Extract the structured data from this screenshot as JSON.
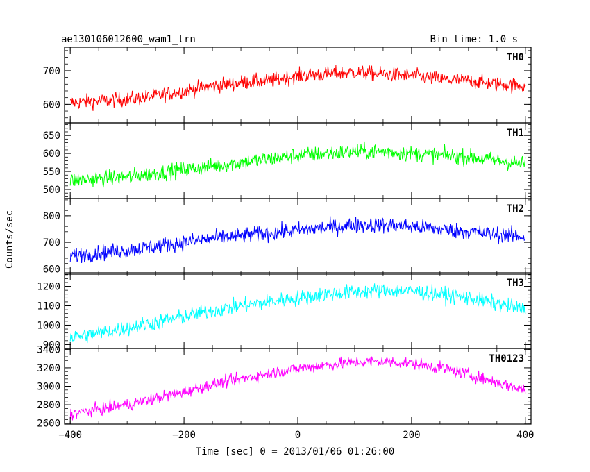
{
  "header": {
    "title": "ae130106012600_wam1_trn",
    "bin_time": "Bin time: 1.0 s"
  },
  "chart_data": [
    {
      "type": "line",
      "name": "TH0",
      "color": "#ff0000",
      "ylim": [
        545,
        770
      ],
      "yticks": [
        600,
        700
      ],
      "anchors": [
        [
          -400,
          605
        ],
        [
          -350,
          610
        ],
        [
          -300,
          615
        ],
        [
          -250,
          625
        ],
        [
          -200,
          640
        ],
        [
          -150,
          655
        ],
        [
          -100,
          665
        ],
        [
          -50,
          670
        ],
        [
          0,
          685
        ],
        [
          50,
          690
        ],
        [
          100,
          695
        ],
        [
          150,
          690
        ],
        [
          200,
          685
        ],
        [
          250,
          675
        ],
        [
          300,
          670
        ],
        [
          350,
          660
        ],
        [
          400,
          655
        ]
      ],
      "noise": 22
    },
    {
      "type": "line",
      "name": "TH1",
      "color": "#00ff00",
      "ylim": [
        475,
        685
      ],
      "yticks": [
        500,
        550,
        600,
        650
      ],
      "anchors": [
        [
          -400,
          525
        ],
        [
          -350,
          530
        ],
        [
          -300,
          535
        ],
        [
          -250,
          545
        ],
        [
          -200,
          555
        ],
        [
          -150,
          565
        ],
        [
          -100,
          575
        ],
        [
          -50,
          585
        ],
        [
          0,
          595
        ],
        [
          50,
          600
        ],
        [
          100,
          605
        ],
        [
          150,
          605
        ],
        [
          200,
          600
        ],
        [
          250,
          595
        ],
        [
          300,
          590
        ],
        [
          350,
          580
        ],
        [
          400,
          570
        ]
      ],
      "noise": 22
    },
    {
      "type": "line",
      "name": "TH2",
      "color": "#0000ff",
      "ylim": [
        580,
        865
      ],
      "yticks": [
        600,
        700,
        800
      ],
      "anchors": [
        [
          -400,
          650
        ],
        [
          -350,
          660
        ],
        [
          -300,
          670
        ],
        [
          -250,
          685
        ],
        [
          -200,
          700
        ],
        [
          -150,
          715
        ],
        [
          -100,
          725
        ],
        [
          -50,
          735
        ],
        [
          0,
          745
        ],
        [
          50,
          755
        ],
        [
          100,
          765
        ],
        [
          150,
          765
        ],
        [
          200,
          760
        ],
        [
          250,
          750
        ],
        [
          300,
          740
        ],
        [
          350,
          730
        ],
        [
          400,
          720
        ]
      ],
      "noise": 30
    },
    {
      "type": "line",
      "name": "TH3",
      "color": "#00ffff",
      "ylim": [
        880,
        1270
      ],
      "yticks": [
        900,
        1000,
        1100,
        1200
      ],
      "anchors": [
        [
          -400,
          935
        ],
        [
          -350,
          960
        ],
        [
          -300,
          985
        ],
        [
          -250,
          1015
        ],
        [
          -200,
          1045
        ],
        [
          -150,
          1075
        ],
        [
          -100,
          1100
        ],
        [
          -50,
          1120
        ],
        [
          0,
          1140
        ],
        [
          50,
          1160
        ],
        [
          100,
          1170
        ],
        [
          150,
          1180
        ],
        [
          200,
          1175
        ],
        [
          250,
          1160
        ],
        [
          300,
          1140
        ],
        [
          350,
          1110
        ],
        [
          400,
          1080
        ]
      ],
      "noise": 40
    },
    {
      "type": "line",
      "name": "TH0123",
      "color": "#ff00ff",
      "ylim": [
        2590,
        3410
      ],
      "yticks": [
        2600,
        2800,
        3000,
        3200,
        3400
      ],
      "anchors": [
        [
          -400,
          2700
        ],
        [
          -350,
          2750
        ],
        [
          -300,
          2800
        ],
        [
          -250,
          2870
        ],
        [
          -200,
          2940
        ],
        [
          -150,
          3020
        ],
        [
          -100,
          3080
        ],
        [
          -50,
          3140
        ],
        [
          0,
          3190
        ],
        [
          50,
          3230
        ],
        [
          100,
          3260
        ],
        [
          150,
          3270
        ],
        [
          200,
          3250
        ],
        [
          250,
          3200
        ],
        [
          300,
          3130
        ],
        [
          350,
          3040
        ],
        [
          400,
          2960
        ]
      ],
      "noise": 65
    }
  ],
  "axes": {
    "xlim": [
      -410,
      410
    ],
    "xticks": [
      -400,
      -200,
      0,
      200,
      400
    ],
    "xlabel": "Time [sec] 0 = 2013/01/06 01:26:00",
    "ylabel": "Counts/sec"
  }
}
